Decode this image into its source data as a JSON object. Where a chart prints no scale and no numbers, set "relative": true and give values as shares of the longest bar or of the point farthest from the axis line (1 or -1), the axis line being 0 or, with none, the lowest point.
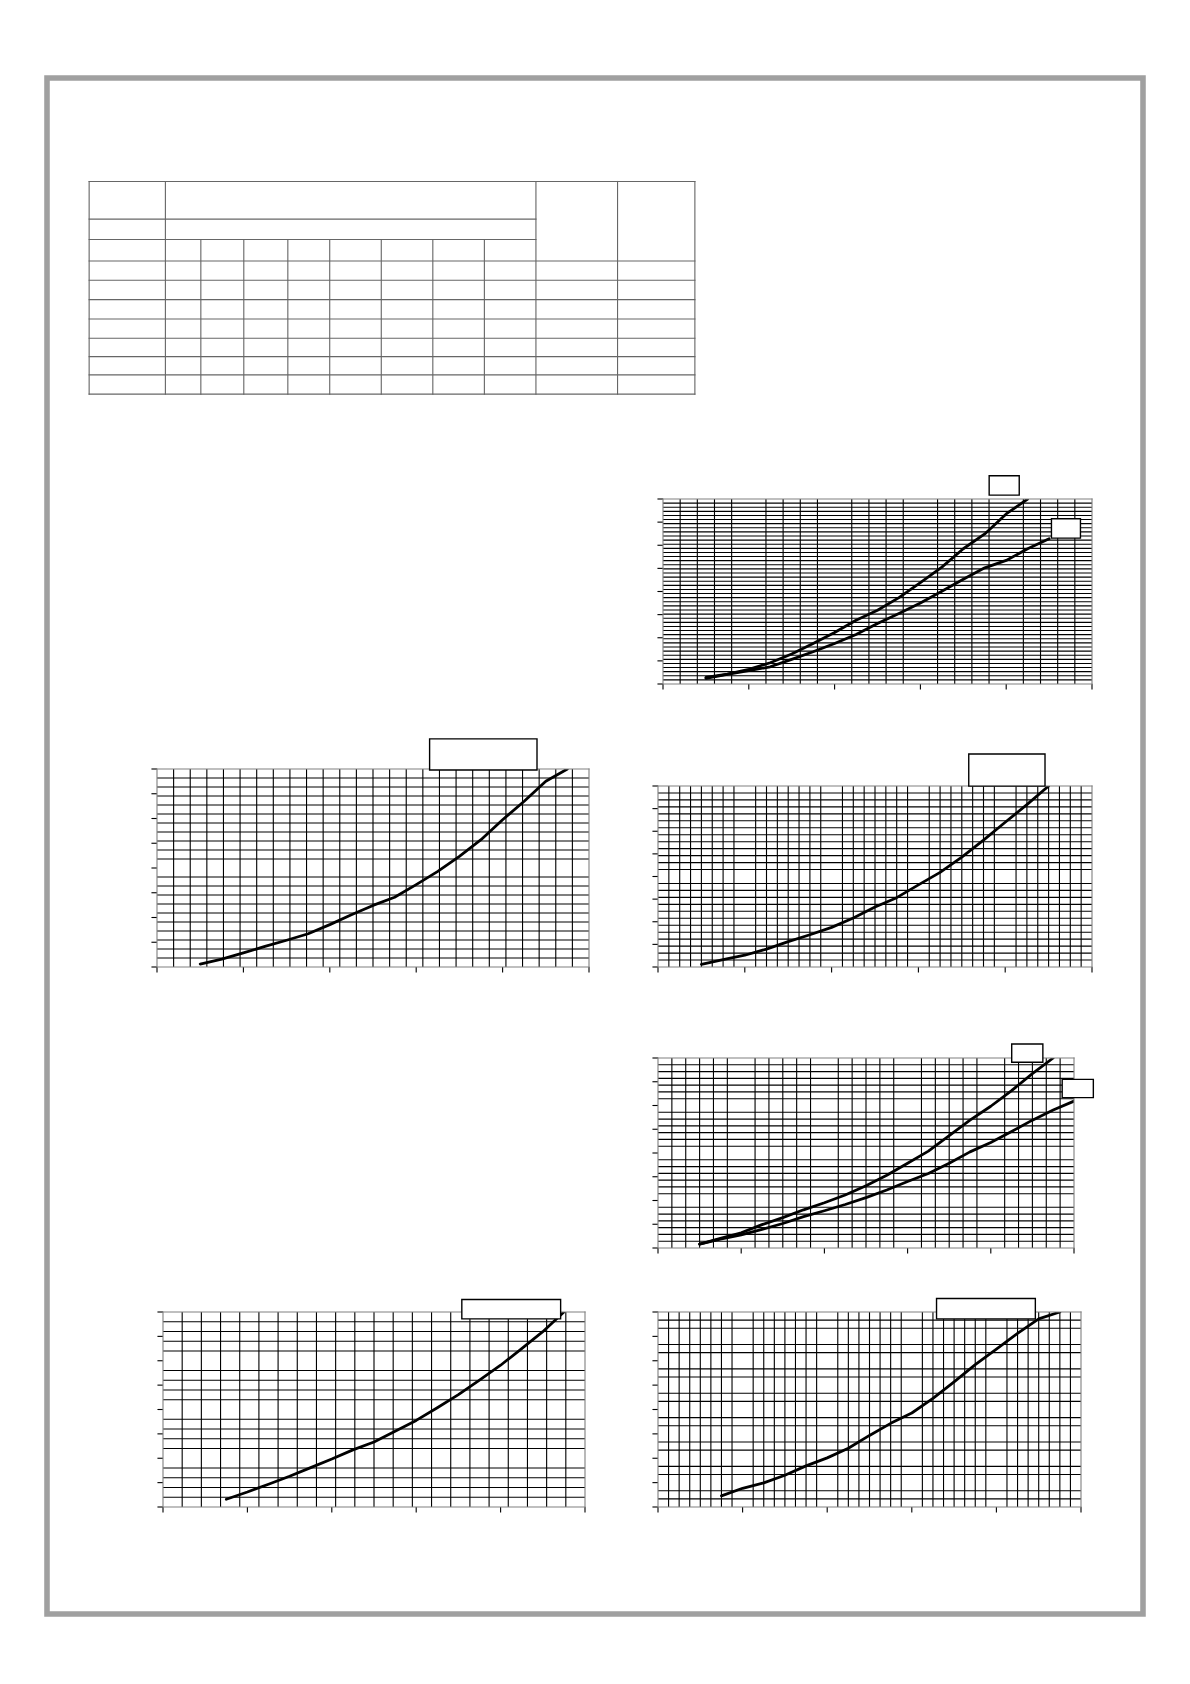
{
  "chart_data": [
    {
      "type": "line",
      "relative": true,
      "grid": true,
      "tick_labels": false,
      "categories": [
        null,
        null,
        null,
        null,
        null,
        null,
        null,
        null,
        null,
        null,
        null,
        null,
        null,
        null,
        null,
        null,
        null,
        null,
        null,
        null,
        null
      ],
      "series": [
        {
          "color": "#000000",
          "values": [
            null,
            null,
            0.036,
            0.054,
            0.079,
            0.115,
            0.162,
            0.219,
            0.278,
            0.345,
            0.399,
            0.467,
            0.548,
            0.632,
            0.731,
            0.811,
            0.919,
            1.0,
            null,
            null,
            null
          ]
        },
        {
          "color": "#000000",
          "values": [
            null,
            null,
            0.031,
            0.052,
            0.072,
            0.093,
            0.133,
            0.174,
            0.219,
            0.268,
            0.327,
            0.381,
            0.438,
            0.501,
            0.566,
            0.628,
            0.668,
            0.731,
            0.785,
            null,
            null
          ]
        }
      ]
    },
    {
      "type": "line",
      "relative": true,
      "grid": true,
      "tick_labels": false,
      "categories": [
        null,
        null,
        null,
        null,
        null,
        null,
        null,
        null,
        null,
        null,
        null,
        null,
        null,
        null,
        null,
        null,
        null,
        null,
        null,
        null,
        null
      ],
      "series": [
        {
          "color": "#000000",
          "values": [
            null,
            null,
            0.015,
            0.04,
            0.071,
            0.104,
            0.135,
            0.168,
            0.214,
            0.264,
            0.311,
            0.352,
            0.416,
            0.483,
            0.559,
            0.643,
            0.744,
            0.837,
            0.938,
            1.0,
            null
          ]
        }
      ]
    },
    {
      "type": "line",
      "relative": true,
      "grid": true,
      "tick_labels": false,
      "categories": [
        null,
        null,
        null,
        null,
        null,
        null,
        null,
        null,
        null,
        null,
        null,
        null,
        null,
        null,
        null,
        null,
        null,
        null,
        null,
        null,
        null
      ],
      "series": [
        {
          "color": "#000000",
          "values": [
            null,
            null,
            0.015,
            0.041,
            0.065,
            0.099,
            0.14,
            0.178,
            0.219,
            0.271,
            0.331,
            0.383,
            0.454,
            0.523,
            0.607,
            0.701,
            0.8,
            0.897,
            1.0,
            null,
            null
          ]
        }
      ]
    },
    {
      "type": "line",
      "relative": true,
      "grid": true,
      "tick_labels": false,
      "categories": [
        null,
        null,
        null,
        null,
        null,
        null,
        null,
        null,
        null,
        null,
        null,
        null,
        null,
        null,
        null,
        null,
        null,
        null,
        null,
        null,
        null
      ],
      "series": [
        {
          "color": "#000000",
          "values": [
            null,
            null,
            0.02,
            0.051,
            0.08,
            0.123,
            0.16,
            0.201,
            0.238,
            0.279,
            0.328,
            0.383,
            0.446,
            0.51,
            0.592,
            0.673,
            0.746,
            0.828,
            0.918,
            1.0,
            null
          ]
        },
        {
          "color": "#000000",
          "values": [
            null,
            null,
            0.02,
            0.047,
            0.069,
            0.098,
            0.129,
            0.165,
            0.196,
            0.229,
            0.265,
            0.305,
            0.35,
            0.392,
            0.446,
            0.506,
            0.555,
            0.613,
            0.673,
            0.726,
            0.773
          ]
        }
      ]
    },
    {
      "type": "line",
      "relative": true,
      "grid": true,
      "tick_labels": false,
      "categories": [
        null,
        null,
        null,
        null,
        null,
        null,
        null,
        null,
        null,
        null,
        null,
        null,
        null,
        null,
        null,
        null,
        null,
        null,
        null,
        null,
        null
      ],
      "series": [
        {
          "color": "#000000",
          "values": [
            null,
            null,
            null,
            0.04,
            0.077,
            0.117,
            0.158,
            0.202,
            0.246,
            0.293,
            0.333,
            0.388,
            0.444,
            0.509,
            0.576,
            0.651,
            0.727,
            0.812,
            0.899,
            1.0,
            null
          ]
        }
      ]
    },
    {
      "type": "line",
      "relative": true,
      "grid": true,
      "tick_labels": false,
      "categories": [
        null,
        null,
        null,
        null,
        null,
        null,
        null,
        null,
        null,
        null,
        null,
        null,
        null,
        null,
        null,
        null,
        null,
        null,
        null,
        null,
        null
      ],
      "series": [
        {
          "color": "#000000",
          "values": [
            null,
            null,
            null,
            0.057,
            0.096,
            0.124,
            0.163,
            0.211,
            0.252,
            0.301,
            0.367,
            0.429,
            0.482,
            0.557,
            0.642,
            0.73,
            0.81,
            0.89,
            0.965,
            1.0,
            null
          ]
        }
      ]
    }
  ]
}
